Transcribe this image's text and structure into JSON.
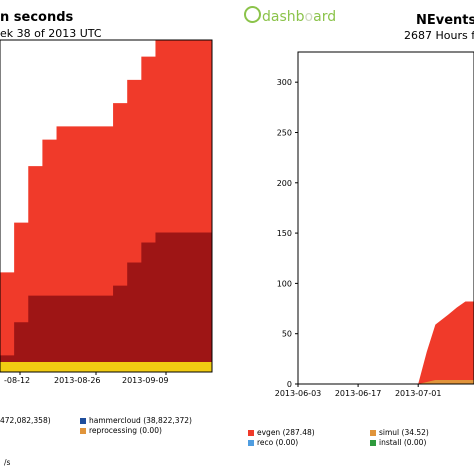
{
  "logo": {
    "text_a": "dashb",
    "text_b": "o",
    "text_c": "ard"
  },
  "left_chart": {
    "title": "n seconds",
    "subtitle": "ek 38 of 2013 UTC",
    "x_ticks": [
      "-08-12",
      "2013-08-26",
      "2013-09-09"
    ],
    "legend": [
      {
        "label": "472,082,358)",
        "color": "#ffffff"
      },
      {
        "label": "hammercloud (38,822,372)",
        "color": "#1f4e9c"
      },
      {
        "label": "reprocessing (0.00)",
        "color": "#e0943b"
      }
    ],
    "footer": "/s",
    "colors": {
      "top": "#f03a2a",
      "mid": "#9e1515",
      "bottom": "#f2cc12"
    }
  },
  "right_chart": {
    "title": "NEvents",
    "subtitle": "2687 Hours f",
    "legend": [
      {
        "label": "evgen (287.48)",
        "color": "#f03a2a"
      },
      {
        "label": "simul (34.52)",
        "color": "#e0943b"
      },
      {
        "label": "reco (0.00)",
        "color": "#4f9de0"
      },
      {
        "label": "install (0.00)",
        "color": "#2e9a3c"
      }
    ]
  },
  "chart_data": [
    {
      "type": "area",
      "title": "n seconds",
      "x_tick_labels": [
        "-08-12",
        "2013-08-26",
        "2013-09-09"
      ],
      "series": [
        {
          "color": "#f03a2a",
          "values": [
            0.3,
            0.45,
            0.62,
            0.7,
            0.74,
            0.74,
            0.74,
            0.74,
            0.81,
            0.88,
            0.95,
            1.0,
            1.0,
            1.0,
            1.0
          ]
        },
        {
          "color": "#9e1515",
          "values": [
            0.05,
            0.15,
            0.23,
            0.23,
            0.23,
            0.23,
            0.23,
            0.23,
            0.26,
            0.33,
            0.39,
            0.42,
            0.42,
            0.42,
            0.42
          ]
        },
        {
          "color": "#f2cc12",
          "values": [
            0.03,
            0.03,
            0.03,
            0.03,
            0.03,
            0.03,
            0.03,
            0.03,
            0.03,
            0.03,
            0.03,
            0.03,
            0.03,
            0.03,
            0.03
          ]
        }
      ]
    },
    {
      "type": "area",
      "title": "NEvents",
      "ylim": [
        0,
        330
      ],
      "y_ticks": [
        0,
        50,
        100,
        150,
        200,
        250,
        300
      ],
      "x_tick_labels": [
        "2013-06-03",
        "2013-06-17",
        "2013-07-01"
      ],
      "x": [
        "2013-06-03",
        "2013-06-17",
        "2013-07-01",
        "2013-07-03",
        "2013-07-05",
        "2013-07-08",
        "2013-07-10",
        "2013-07-12"
      ],
      "series": [
        {
          "name": "evgen",
          "color": "#f03a2a",
          "values": [
            0,
            0,
            0,
            30,
            55,
            65,
            72,
            78
          ]
        },
        {
          "name": "simul",
          "color": "#e0943b",
          "values": [
            0,
            0,
            0,
            2,
            4,
            4,
            4,
            4
          ]
        }
      ]
    }
  ]
}
